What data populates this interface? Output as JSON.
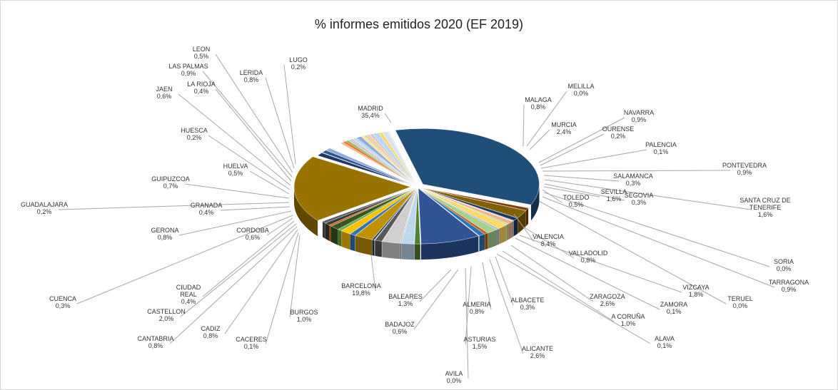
{
  "chart_data": {
    "type": "pie",
    "title": "% informes emitidos 2020 (EF 2019)",
    "slices": [
      {
        "name": "MADRID",
        "label": "35,4%",
        "value": 35.4,
        "color": "#1f4e79"
      },
      {
        "name": "MALAGA",
        "label": "0,8%",
        "value": 0.8,
        "color": "#843c0c"
      },
      {
        "name": "MELILLA",
        "label": "0,0%",
        "value": 0.0,
        "color": "#7f6000"
      },
      {
        "name": "MURCIA",
        "label": "2,4%",
        "value": 2.4,
        "color": "#806000"
      },
      {
        "name": "NAVARRA",
        "label": "0,9%",
        "value": 0.9,
        "color": "#203864"
      },
      {
        "name": "OURENSE",
        "label": "0,2%",
        "value": 0.2,
        "color": "#9dc3e6"
      },
      {
        "name": "PALENCIA",
        "label": "0,1%",
        "value": 0.1,
        "color": "#c55a11"
      },
      {
        "name": "PONTEVEDRA",
        "label": "0,9%",
        "value": 0.9,
        "color": "#f4b183"
      },
      {
        "name": "SALAMANCA",
        "label": "0,3%",
        "value": 0.3,
        "color": "#a9d18e"
      },
      {
        "name": "SANTA CRUZ DE TENERIFE",
        "label": "1,6%",
        "value": 1.6,
        "color": "#ffd966"
      },
      {
        "name": "SEGOVIA",
        "label": "0,3%",
        "value": 0.3,
        "color": "#8faadc"
      },
      {
        "name": "SEVILLA",
        "label": "1,6%",
        "value": 1.6,
        "color": "#a9d18e"
      },
      {
        "name": "TOLEDO",
        "label": "0,5%",
        "value": 0.5,
        "color": "#c55a11"
      },
      {
        "name": "SORIA",
        "label": "0,0%",
        "value": 0.0,
        "color": "#bdd7ee"
      },
      {
        "name": "TARRAGONA",
        "label": "0,9%",
        "value": 0.9,
        "color": "#2e75b6"
      },
      {
        "name": "TERUEL",
        "label": "0,0%",
        "value": 0.0,
        "color": "#ffe699"
      },
      {
        "name": "VALENCIA",
        "label": "8,4%",
        "value": 8.4,
        "color": "#2f5597"
      },
      {
        "name": "VALLADOLID",
        "label": "0,8%",
        "value": 0.8,
        "color": "#548235"
      },
      {
        "name": "VIZCAYA",
        "label": "1,8%",
        "value": 1.8,
        "color": "#bdd7ee"
      },
      {
        "name": "ZAMORA",
        "label": "0,1%",
        "value": 0.1,
        "color": "#7f7f7f"
      },
      {
        "name": "ZARAGOZA",
        "label": "2,6%",
        "value": 2.6,
        "color": "#d0cece"
      },
      {
        "name": "A CORUÑA",
        "label": "1,0%",
        "value": 1.0,
        "color": "#595959"
      },
      {
        "name": "ALAVA",
        "label": "0,1%",
        "value": 0.1,
        "color": "#c9c9c9"
      },
      {
        "name": "ALBACETE",
        "label": "0,3%",
        "value": 0.3,
        "color": "#1f3864"
      },
      {
        "name": "ALICANTE",
        "label": "2,6%",
        "value": 2.6,
        "color": "#bf9000"
      },
      {
        "name": "ALMERIA",
        "label": "0,8%",
        "value": 0.8,
        "color": "#2e75b6"
      },
      {
        "name": "ASTURIAS",
        "label": "1,5%",
        "value": 1.5,
        "color": "#ffc000"
      },
      {
        "name": "AVILA",
        "label": "0,0%",
        "value": 0.0,
        "color": "#9dc3e6"
      },
      {
        "name": "BADAJOZ",
        "label": "0,6%",
        "value": 0.6,
        "color": "#70ad47"
      },
      {
        "name": "BALEARES",
        "label": "1,3%",
        "value": 1.3,
        "color": "#375623"
      },
      {
        "name": "",
        "label": "",
        "value": 0.4,
        "color": "#c55a11"
      },
      {
        "name": "",
        "label": "",
        "value": 0.8,
        "color": "#3a3a3a"
      },
      {
        "name": "",
        "label": "",
        "value": 0.6,
        "color": "#595959"
      },
      {
        "name": "BARCELONA",
        "label": "19,8%",
        "value": 19.8,
        "color": "#997300"
      },
      {
        "name": "BURGOS",
        "label": "1,0%",
        "value": 1.0,
        "color": "#203864"
      },
      {
        "name": "CACERES",
        "label": "0,1%",
        "value": 0.1,
        "color": "#a5a5a5"
      },
      {
        "name": "CADIZ",
        "label": "0,8%",
        "value": 0.8,
        "color": "#2f5597"
      },
      {
        "name": "CANTABRIA",
        "label": "0,8%",
        "value": 0.8,
        "color": "#8faadc"
      },
      {
        "name": "CASTELLON",
        "label": "2,0%",
        "value": 2.0,
        "color": "#ffffff"
      },
      {
        "name": "CIUDAD REAL",
        "label": "0,4%",
        "value": 0.4,
        "color": "#f4b183"
      },
      {
        "name": "CORDOBA",
        "label": "0,6%",
        "value": 0.6,
        "color": "#ed7d31"
      },
      {
        "name": "CUENCA",
        "label": "0,3%",
        "value": 0.3,
        "color": "#70ad47"
      },
      {
        "name": "GERONA",
        "label": "0,8%",
        "value": 0.8,
        "color": "#d0cece"
      },
      {
        "name": "GRANADA",
        "label": "0,4%",
        "value": 0.4,
        "color": "#bdd7ee"
      },
      {
        "name": "GUADALAJARA",
        "label": "0,2%",
        "value": 0.2,
        "color": "#9dc3e6"
      },
      {
        "name": "GUIPUZCOA",
        "label": "0,7%",
        "value": 0.7,
        "color": "#8faadc"
      },
      {
        "name": "HUELVA",
        "label": "0,5%",
        "value": 0.5,
        "color": "#ffe699"
      },
      {
        "name": "HUESCA",
        "label": "0,2%",
        "value": 0.2,
        "color": "#a9d18e"
      },
      {
        "name": "JAEN",
        "label": "0,6%",
        "value": 0.6,
        "color": "#f8cbad"
      },
      {
        "name": "LA RIOJA",
        "label": "0,4%",
        "value": 0.4,
        "color": "#c9c9c9"
      },
      {
        "name": "LAS PALMAS",
        "label": "0,9%",
        "value": 0.9,
        "color": "#bdd7ee"
      },
      {
        "name": "LEON",
        "label": "0,5%",
        "value": 0.5,
        "color": "#ffd966"
      },
      {
        "name": "LERIDA",
        "label": "0,8%",
        "value": 0.8,
        "color": "#dae3f3"
      },
      {
        "name": "LUGO",
        "label": "0,2%",
        "value": 0.2,
        "color": "#e2f0d9"
      }
    ],
    "labels": [
      {
        "name": "MADRID",
        "pct": "35,4%"
      },
      {
        "name": "MALAGA",
        "pct": "0,8%"
      },
      {
        "name": "MELILLA",
        "pct": "0,0%"
      },
      {
        "name": "MURCIA",
        "pct": "2,4%"
      },
      {
        "name": "NAVARRA",
        "pct": "0,9%"
      },
      {
        "name": "OURENSE",
        "pct": "0,2%"
      },
      {
        "name": "PALENCIA",
        "pct": "0,1%"
      },
      {
        "name": "PONTEVEDRA",
        "pct": "0,9%"
      },
      {
        "name": "SALAMANCA",
        "pct": "0,3%"
      },
      {
        "name": "SANTA CRUZ DE",
        "name2": "TENERIFE",
        "pct": "1,6%"
      },
      {
        "name": "SEGOVIA",
        "pct": "0,3%"
      },
      {
        "name": "SEVILLA",
        "pct": "1,6%"
      },
      {
        "name": "TOLEDO",
        "pct": "0,5%"
      },
      {
        "name": "SORIA",
        "pct": "0,0%"
      },
      {
        "name": "TARRAGONA",
        "pct": "0,9%"
      },
      {
        "name": "TERUEL",
        "pct": "0,0%"
      },
      {
        "name": "VALENCIA",
        "pct": "8,4%"
      },
      {
        "name": "VALLADOLID",
        "pct": "0,8%"
      },
      {
        "name": "VIZCAYA",
        "pct": "1,8%"
      },
      {
        "name": "ZAMORA",
        "pct": "0,1%"
      },
      {
        "name": "ZARAGOZA",
        "pct": "2,6%"
      },
      {
        "name": "A CORUÑA",
        "pct": "1,0%"
      },
      {
        "name": "ALAVA",
        "pct": "0,1%"
      },
      {
        "name": "ALBACETE",
        "pct": "0,3%"
      },
      {
        "name": "ALICANTE",
        "pct": "2,6%"
      },
      {
        "name": "ALMERIA",
        "pct": "0,8%"
      },
      {
        "name": "ASTURIAS",
        "pct": "1,5%"
      },
      {
        "name": "AVILA",
        "pct": "0,0%"
      },
      {
        "name": "BADAJOZ",
        "pct": "0,6%"
      },
      {
        "name": "BALEARES",
        "pct": "1,3%"
      },
      {
        "name": "BARCELONA",
        "pct": "19,8%"
      },
      {
        "name": "BURGOS",
        "pct": "1,0%"
      },
      {
        "name": "CACERES",
        "pct": "0,1%"
      },
      {
        "name": "CADIZ",
        "pct": "0,8%"
      },
      {
        "name": "CANTABRIA",
        "pct": "0,8%"
      },
      {
        "name": "CASTELLON",
        "pct": "2,0%"
      },
      {
        "name": "CIUDAD",
        "name2": "REAL",
        "pct": "0,4%"
      },
      {
        "name": "CORDOBA",
        "pct": "0,6%"
      },
      {
        "name": "CUENCA",
        "pct": "0,3%"
      },
      {
        "name": "GERONA",
        "pct": "0,8%"
      },
      {
        "name": "GRANADA",
        "pct": "0,4%"
      },
      {
        "name": "GUADALAJARA",
        "pct": "0,2%"
      },
      {
        "name": "GUIPUZCOA",
        "pct": "0,7%"
      },
      {
        "name": "HUELVA",
        "pct": "0,5%"
      },
      {
        "name": "HUESCA",
        "pct": "0,2%"
      },
      {
        "name": "JAEN",
        "pct": "0,6%"
      },
      {
        "name": "LA RIOJA",
        "pct": "0,4%"
      },
      {
        "name": "LAS PALMAS",
        "pct": "0,9%"
      },
      {
        "name": "LEON",
        "pct": "0,5%"
      },
      {
        "name": "LERIDA",
        "pct": "0,8%"
      },
      {
        "name": "LUGO",
        "pct": "0,2%"
      }
    ]
  }
}
